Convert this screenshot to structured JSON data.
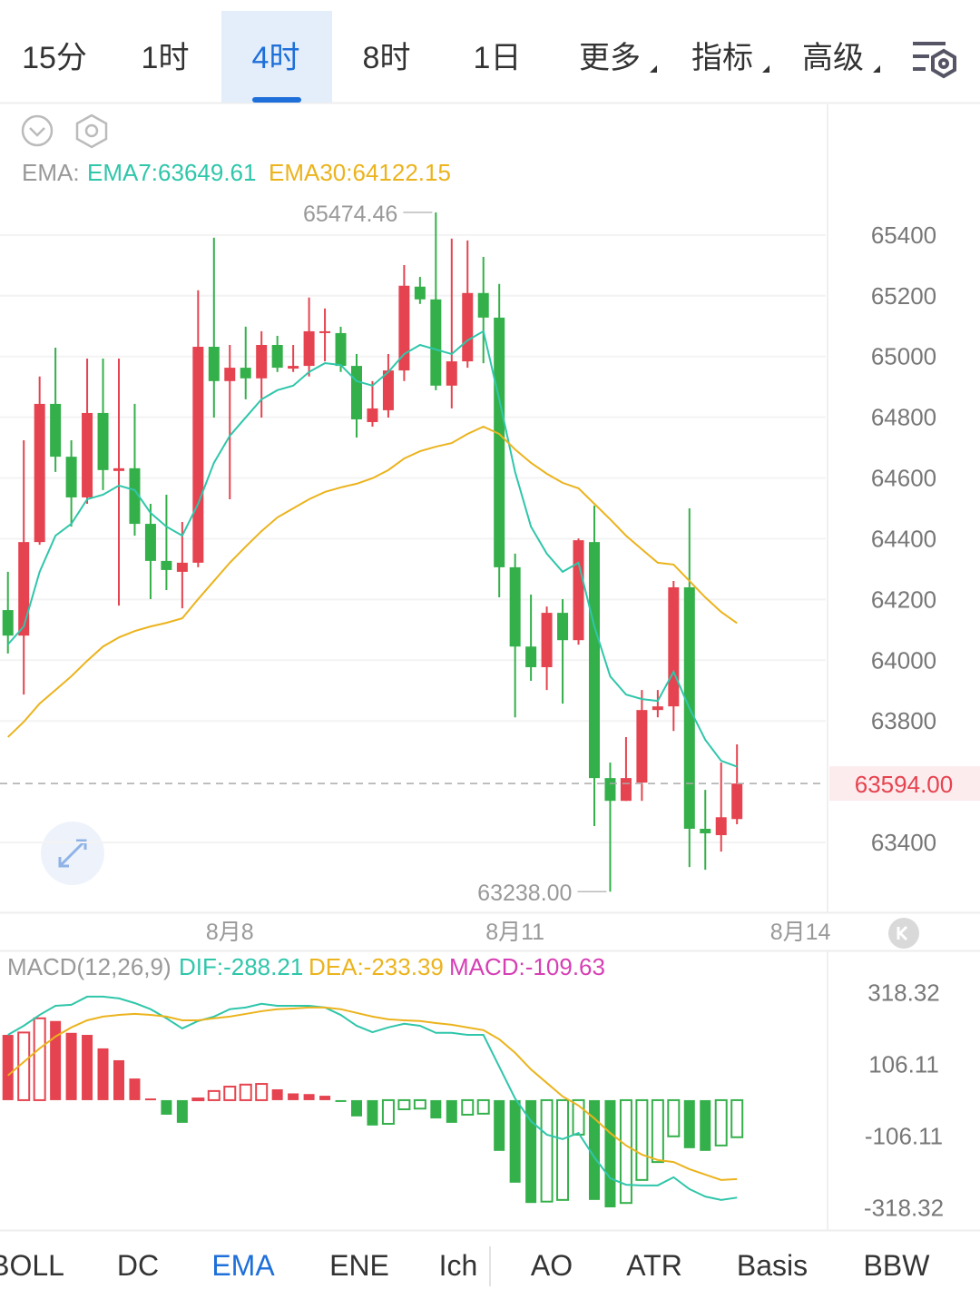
{
  "tabs": {
    "items": [
      "15分",
      "1时",
      "4时",
      "8时",
      "1日",
      "更多",
      "指标",
      "高级"
    ],
    "active": 2
  },
  "chart_data": [
    {
      "type": "candlestick",
      "legend_prefix": "EMA:",
      "up_color": "#e5434f",
      "down_color": "#34b04a",
      "open": [
        64165,
        64081,
        64389,
        64844,
        64670,
        64536,
        64814,
        64623,
        64632,
        64449,
        64327,
        64291,
        64321,
        65032,
        64919,
        64963,
        64928,
        65038,
        64960,
        64969,
        65077,
        65077,
        64969,
        64784,
        64823,
        64954,
        65230,
        65188,
        64904,
        64984,
        65209,
        65128,
        64306,
        64045,
        63977,
        64156,
        64066,
        64389,
        63612,
        63537,
        63597,
        63836,
        63848,
        64240,
        63445,
        63424,
        63477
      ],
      "high": [
        64291,
        64724,
        64934,
        65029,
        64724,
        64993,
        64993,
        64993,
        64844,
        64515,
        64545,
        64455,
        65218,
        65391,
        65038,
        65098,
        65083,
        65068,
        65038,
        65194,
        65158,
        65098,
        65008,
        64919,
        65008,
        65301,
        65262,
        65474.46,
        65388,
        65382,
        65328,
        65239,
        64351,
        64216,
        64177,
        64201,
        64401,
        64509,
        63663,
        63747,
        63902,
        63902,
        64261,
        64500,
        63573,
        63663,
        63723
      ],
      "low": [
        64022,
        63887,
        64380,
        64620,
        64440,
        64515,
        64560,
        64180,
        64410,
        64201,
        64231,
        64171,
        64306,
        64799,
        64530,
        64859,
        64799,
        64949,
        64949,
        64934,
        64984,
        64949,
        64733,
        64769,
        64799,
        64919,
        65173,
        64889,
        64829,
        64963,
        64978,
        64207,
        63812,
        63932,
        63902,
        63857,
        64051,
        63454,
        63238,
        63537,
        63537,
        63812,
        63767,
        63319,
        63310,
        63370,
        63460
      ],
      "close": [
        64081,
        64389,
        64844,
        64670,
        64536,
        64814,
        64626,
        64632,
        64449,
        64327,
        64297,
        64321,
        65032,
        64919,
        64963,
        64928,
        65038,
        64963,
        64969,
        65083,
        65083,
        64969,
        64793,
        64829,
        64954,
        65233,
        65188,
        64904,
        64984,
        65209,
        65128,
        64306,
        64045,
        63977,
        64156,
        64066,
        64395,
        63612,
        63537,
        63612,
        63836,
        63848,
        64240,
        63445,
        63430,
        63483,
        63594
      ],
      "series": [
        {
          "name": "EMA7",
          "legend_label": "EMA7:63649.61",
          "color": "#2fc6aa",
          "values": [
            64052,
            64111,
            64291,
            64410,
            64449,
            64530,
            64545,
            64575,
            64560,
            64485,
            64440,
            64410,
            64515,
            64650,
            64739,
            64799,
            64859,
            64889,
            64904,
            64949,
            64978,
            64972,
            64919,
            64904,
            64949,
            65008,
            65038,
            65023,
            65008,
            65053,
            65083,
            64859,
            64620,
            64440,
            64351,
            64291,
            64321,
            64111,
            63947,
            63887,
            63872,
            63866,
            63962,
            63842,
            63738,
            63669,
            63649.61
          ]
        },
        {
          "name": "EMA30",
          "legend_label": "EMA30:64122.15",
          "color": "#ebb31d",
          "values": [
            63747,
            63797,
            63857,
            63902,
            63947,
            63998,
            64045,
            64075,
            64096,
            64111,
            64123,
            64138,
            64201,
            64261,
            64321,
            64374,
            64425,
            64470,
            64500,
            64530,
            64554,
            64569,
            64581,
            64599,
            64626,
            64664,
            64688,
            64703,
            64715,
            64745,
            64769,
            64745,
            64694,
            64650,
            64614,
            64584,
            64566,
            64515,
            64464,
            64410,
            64365,
            64321,
            64315,
            64261,
            64207,
            64159,
            64122.15
          ]
        }
      ],
      "high_marker": 65474.46,
      "low_marker": {
        "value": 63238,
        "label": "63238.00"
      },
      "last_price": {
        "value": 63594,
        "label": "63594.00"
      },
      "xlim": [
        -0.5,
        51.6
      ],
      "xticks": [
        {
          "value": 14,
          "label": "8月8"
        },
        {
          "value": 32,
          "label": "8月11"
        },
        {
          "value": 50,
          "label": "8月14"
        }
      ],
      "ylim": [
        63170,
        65830
      ],
      "yticks": [
        65400,
        65200,
        65000,
        64800,
        64600,
        64400,
        64200,
        64000,
        63800,
        63400
      ],
      "grid": true
    },
    {
      "type": "macd",
      "title": "MACD(12,26,9)",
      "series": [
        {
          "name": "DIF",
          "legend_label": "DIF:-288.21",
          "color": "#2fc6aa",
          "values": [
            193,
            220,
            252,
            279,
            282,
            306,
            306,
            301,
            287,
            269,
            242,
            212,
            234,
            247,
            269,
            274,
            285,
            279,
            279,
            279,
            274,
            252,
            220,
            201,
            215,
            226,
            220,
            199,
            199,
            193,
            193,
            99,
            5,
            -62,
            -102,
            -115,
            -97,
            -169,
            -231,
            -250,
            -252,
            -252,
            -228,
            -263,
            -285,
            -295,
            -288.21
          ]
        },
        {
          "name": "DEA",
          "legend_label": "DEA:-233.39",
          "color": "#ebb31d",
          "values": [
            73,
            113,
            153,
            188,
            215,
            236,
            247,
            252,
            255,
            252,
            247,
            236,
            236,
            242,
            247,
            255,
            263,
            269,
            271,
            274,
            274,
            269,
            258,
            247,
            239,
            236,
            234,
            228,
            223,
            215,
            207,
            180,
            140,
            91,
            51,
            11,
            -16,
            -54,
            -97,
            -134,
            -161,
            -177,
            -183,
            -204,
            -220,
            -236,
            -233.39
          ]
        }
      ],
      "histogram": {
        "name": "MACD",
        "legend_label": "MACD:-109.63",
        "color": "#d63fb4",
        "up_color": "#e5434f",
        "down_color": "#34b04a",
        "values": [
          193,
          200,
          242,
          234,
          199,
          193,
          153,
          118,
          64,
          5,
          -43,
          -67,
          5,
          27,
          40,
          46,
          48,
          32,
          20,
          18,
          13,
          -3,
          -48,
          -75,
          -70,
          -27,
          -25,
          -54,
          -67,
          -43,
          -40,
          -150,
          -244,
          -304,
          -300,
          -295,
          -102,
          -295,
          -317,
          -304,
          -236,
          -183,
          -107,
          -142,
          -150,
          -134,
          -109.63
        ]
      },
      "xlim": [
        -0.5,
        51.6
      ],
      "ylim": [
        -384,
        440
      ],
      "yticks": [
        318.32,
        106.11,
        -106.11,
        -318.32
      ]
    }
  ],
  "indicator_tabs": {
    "items": [
      "BOLL",
      "DC",
      "EMA",
      "ENE",
      "Ich",
      "AO",
      "ATR",
      "Basis",
      "BBW"
    ],
    "active": 2
  }
}
